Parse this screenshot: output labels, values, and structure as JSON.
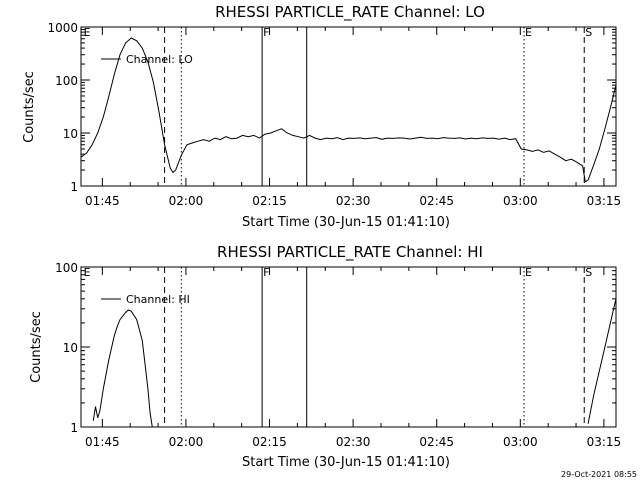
{
  "footer_stamp": "29-Oct-2021 08:55",
  "chart_data": [
    {
      "type": "line",
      "title": "RHESSI PARTICLE_RATE Channel: LO",
      "xlabel": "Start Time (30-Jun-15 01:41:10)",
      "ylabel": "Counts/sec",
      "yscale": "log",
      "ylim": [
        1,
        1000
      ],
      "xlim_minutes": [
        0,
        96
      ],
      "y_ticks": [
        {
          "value": 1,
          "label": "1"
        },
        {
          "value": 10,
          "label": "10"
        },
        {
          "value": 100,
          "label": "100"
        },
        {
          "value": 1000,
          "label": "1000"
        }
      ],
      "x_ticks": [
        {
          "min": 3.83,
          "label": "01:45"
        },
        {
          "min": 18.83,
          "label": "02:00"
        },
        {
          "min": 33.83,
          "label": "02:15"
        },
        {
          "min": 48.83,
          "label": "02:30"
        },
        {
          "min": 63.83,
          "label": "02:45"
        },
        {
          "min": 78.83,
          "label": "03:00"
        },
        {
          "min": 93.83,
          "label": "03:15"
        }
      ],
      "legend": {
        "label": "Channel: LO",
        "position": "top-left"
      },
      "markers": [
        {
          "min": 0.3,
          "style": "none",
          "label": "E"
        },
        {
          "min": 15.0,
          "style": "dashed",
          "label": ""
        },
        {
          "min": 18.0,
          "style": "dotted",
          "label": ""
        },
        {
          "min": 32.5,
          "style": "solid",
          "label": "F"
        },
        {
          "min": 40.5,
          "style": "solid",
          "label": ""
        },
        {
          "min": 79.5,
          "style": "dotted",
          "label": "E"
        },
        {
          "min": 90.3,
          "style": "dashed",
          "label": "S"
        },
        {
          "min": 96.0,
          "style": "dashdot",
          "label": ""
        }
      ],
      "series": [
        {
          "name": "Channel: LO",
          "x": [
            0,
            1,
            2,
            3,
            4,
            5,
            6,
            7,
            8,
            9,
            10,
            11,
            12,
            13,
            14,
            15,
            16,
            16.5,
            17,
            18,
            19,
            20,
            21,
            22,
            23,
            24,
            25,
            26,
            27,
            28,
            29,
            30,
            31,
            32,
            33,
            34,
            35,
            36,
            37,
            38,
            39,
            40,
            41,
            42,
            43,
            44,
            45,
            46,
            47,
            48,
            49,
            50,
            51,
            52,
            53,
            54,
            55,
            56,
            57,
            58,
            59,
            60,
            61,
            62,
            63,
            64,
            65,
            66,
            67,
            68,
            69,
            70,
            71,
            72,
            73,
            74,
            75,
            76,
            77,
            78,
            79,
            80,
            81,
            82,
            83,
            84,
            85,
            86,
            87,
            88,
            89,
            90,
            90.5,
            91,
            92,
            93,
            94,
            95,
            96
          ],
          "values": [
            3.5,
            4.2,
            6,
            10,
            20,
            50,
            130,
            300,
            500,
            620,
            550,
            400,
            220,
            90,
            25,
            6,
            2.2,
            1.8,
            2,
            3.8,
            6,
            6.5,
            7,
            7.5,
            7,
            8,
            7.5,
            8.5,
            7.8,
            8,
            9,
            8.5,
            9,
            8,
            9.5,
            10,
            11,
            12,
            10,
            9,
            8.5,
            8,
            9,
            8,
            7.5,
            8,
            7.8,
            8.2,
            7.5,
            8,
            7.9,
            8.1,
            7.8,
            8,
            8.2,
            7.6,
            8,
            7.9,
            8.1,
            8,
            7.7,
            8,
            8.3,
            7.9,
            8,
            7.8,
            8.2,
            8,
            7.9,
            8.1,
            7.7,
            8,
            7.8,
            8.1,
            7.9,
            8,
            7.6,
            8,
            7.5,
            7.8,
            5,
            4.8,
            4.5,
            4.8,
            4.3,
            4.6,
            4,
            3.5,
            3,
            3.2,
            2.8,
            2.4,
            1.2,
            1.3,
            2.5,
            5,
            12,
            30,
            80
          ]
        }
      ]
    },
    {
      "type": "line",
      "title": "RHESSI PARTICLE_RATE Channel: HI",
      "xlabel": "Start Time (30-Jun-15 01:41:10)",
      "ylabel": "Counts/sec",
      "yscale": "log",
      "ylim": [
        1,
        100
      ],
      "xlim_minutes": [
        0,
        96
      ],
      "y_ticks": [
        {
          "value": 1,
          "label": "1"
        },
        {
          "value": 10,
          "label": "10"
        },
        {
          "value": 100,
          "label": "100"
        }
      ],
      "x_ticks": [
        {
          "min": 3.83,
          "label": "01:45"
        },
        {
          "min": 18.83,
          "label": "02:00"
        },
        {
          "min": 33.83,
          "label": "02:15"
        },
        {
          "min": 48.83,
          "label": "02:30"
        },
        {
          "min": 63.83,
          "label": "02:45"
        },
        {
          "min": 78.83,
          "label": "03:00"
        },
        {
          "min": 93.83,
          "label": "03:15"
        }
      ],
      "legend": {
        "label": "Channel: HI",
        "position": "top-left"
      },
      "markers": [
        {
          "min": 0.3,
          "style": "none",
          "label": "E"
        },
        {
          "min": 15.0,
          "style": "dashed",
          "label": ""
        },
        {
          "min": 18.0,
          "style": "dotted",
          "label": ""
        },
        {
          "min": 32.5,
          "style": "solid",
          "label": "F"
        },
        {
          "min": 40.5,
          "style": "solid",
          "label": ""
        },
        {
          "min": 79.5,
          "style": "dotted",
          "label": "E"
        },
        {
          "min": 90.3,
          "style": "dashed",
          "label": "S"
        },
        {
          "min": 96.0,
          "style": "dashdot",
          "label": ""
        }
      ],
      "series": [
        {
          "name": "Channel: HI",
          "x": [
            2.2,
            2.6,
            3,
            3.4,
            4,
            5,
            6,
            6.5,
            7,
            8,
            8.5,
            9,
            10,
            11,
            11.5,
            12,
            12.4,
            12.8
          ],
          "values": [
            1.2,
            1.8,
            1.3,
            1.6,
            3,
            7,
            14,
            18,
            22,
            27,
            29,
            28,
            22,
            12,
            6,
            3,
            1.5,
            1
          ]
        },
        {
          "name": "Channel: HI",
          "x": [
            91,
            92,
            93,
            94,
            95,
            96
          ],
          "values": [
            1.1,
            2.5,
            5,
            10,
            20,
            40
          ]
        }
      ]
    }
  ]
}
